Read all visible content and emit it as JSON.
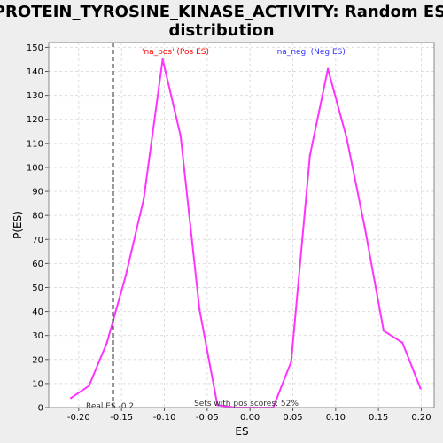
{
  "chart_data": {
    "type": "line",
    "title_lines": [
      "PROTEIN_TYROSINE_KINASE_ACTIVITY: Random ES",
      "distribution"
    ],
    "xlabel": "ES",
    "ylabel": "P(ES)",
    "xlim": [
      -0.235,
      0.215
    ],
    "ylim": [
      0,
      152
    ],
    "grid": true,
    "x_ticks": [
      -0.2,
      -0.15,
      -0.1,
      -0.05,
      0.0,
      0.05,
      0.1,
      0.15,
      0.2
    ],
    "x_tick_labels": [
      "-0.20",
      "-0.15",
      "-0.10",
      "-0.05",
      "0.00",
      "0.05",
      "0.10",
      "0.15",
      "0.20"
    ],
    "y_ticks": [
      0,
      10,
      20,
      30,
      40,
      50,
      60,
      70,
      80,
      90,
      100,
      110,
      120,
      130,
      140,
      150
    ],
    "y_tick_labels": [
      "0",
      "10",
      "20",
      "30",
      "40",
      "50",
      "60",
      "70",
      "80",
      "90",
      "100",
      "110",
      "120",
      "130",
      "140",
      "150"
    ],
    "series": [
      {
        "color": "#ff33ff",
        "x": [
          -0.209,
          -0.188,
          -0.167,
          -0.145,
          -0.124,
          -0.102,
          -0.081,
          -0.059,
          -0.038,
          -0.017,
          0.005,
          0.027,
          0.048,
          0.07,
          0.091,
          0.113,
          0.134,
          0.156,
          0.178,
          0.199
        ],
        "y": [
          4,
          9,
          27,
          55,
          87,
          145,
          113,
          41,
          1,
          0,
          0,
          0,
          19,
          105,
          141,
          112,
          75,
          32,
          27,
          8
        ]
      }
    ],
    "reference_line": {
      "x": -0.16,
      "label": "Real ES -0.2"
    },
    "annotations": {
      "pos_label": "'na_pos' (Pos ES)",
      "neg_label": "'na_neg' (Neg ES)",
      "sets_label": "Sets with pos scores: 52%"
    },
    "colors": {
      "pos_label": "#ff0000",
      "neg_label": "#3333ff",
      "line": "#ff33ff",
      "grid": "#dddddd",
      "plot_bg": "#ffffff",
      "page_bg": "#eeeeee"
    }
  }
}
